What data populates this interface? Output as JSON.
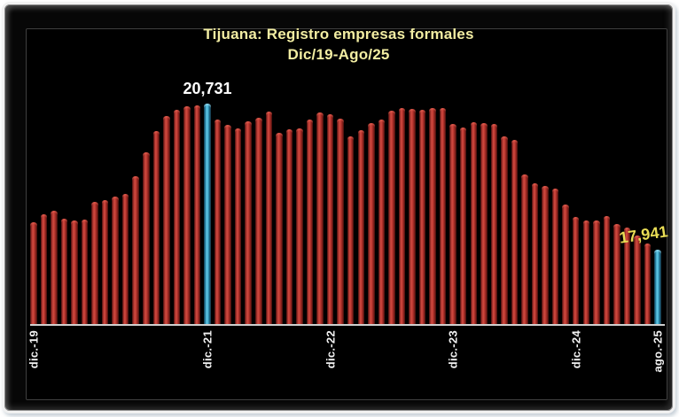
{
  "title": {
    "line1": "Tijuana: Registro empresas formales",
    "line2": "Dic/19-Ago/25"
  },
  "colors": {
    "background": "#000000",
    "frame_border": "#f1f1f1",
    "title_text": "#f2eda2",
    "bar_red": "#c0392b",
    "bar_highlight_blue": "#3fa9cc",
    "axis_line": "#cfcfcf",
    "tick_text": "#f2f2f2",
    "peak_label_text": "#ffffff",
    "last_label_text": "#e9dd55"
  },
  "chart_data": {
    "type": "bar",
    "title": "Tijuana: Registro empresas formales Dic/19-Ago/25",
    "xlabel": "",
    "ylabel": "",
    "grid": false,
    "legend": null,
    "y_axis_visible": false,
    "ylim": [
      16500,
      21000
    ],
    "n_bars": 62,
    "x_first": "dic.-19",
    "x_last": "ago.-25",
    "ticks": [
      {
        "index": 0,
        "label": "dic.-19"
      },
      {
        "index": 17,
        "label": "dic.-21"
      },
      {
        "index": 29,
        "label": "dic.-22"
      },
      {
        "index": 41,
        "label": "dic.-23"
      },
      {
        "index": 53,
        "label": "dic.-24"
      },
      {
        "index": 61,
        "label": "ago.-25"
      }
    ],
    "values": [
      18460,
      18610,
      18680,
      18540,
      18490,
      18510,
      18860,
      18890,
      18960,
      19010,
      19350,
      19800,
      20200,
      20500,
      20620,
      20680,
      20700,
      20731,
      20430,
      20320,
      20250,
      20390,
      20460,
      20580,
      20170,
      20240,
      20260,
      20430,
      20560,
      20530,
      20450,
      20100,
      20220,
      20360,
      20430,
      20590,
      20650,
      20630,
      20610,
      20640,
      20640,
      20350,
      20280,
      20380,
      20360,
      20350,
      20110,
      20030,
      19370,
      19210,
      19160,
      19100,
      18800,
      18560,
      18490,
      18490,
      18590,
      18430,
      18360,
      18210,
      18060,
      17941
    ],
    "annotations": [
      {
        "index": 17,
        "text": "20,731",
        "value": 20731,
        "color": "#ffffff",
        "rotation": 0,
        "shift_x": 0
      },
      {
        "index": 61,
        "text": "17,941",
        "value": 17941,
        "color": "#e9dd55",
        "rotation": -8,
        "shift_x": -16
      }
    ],
    "highlighted_indices": [
      17,
      61
    ]
  }
}
